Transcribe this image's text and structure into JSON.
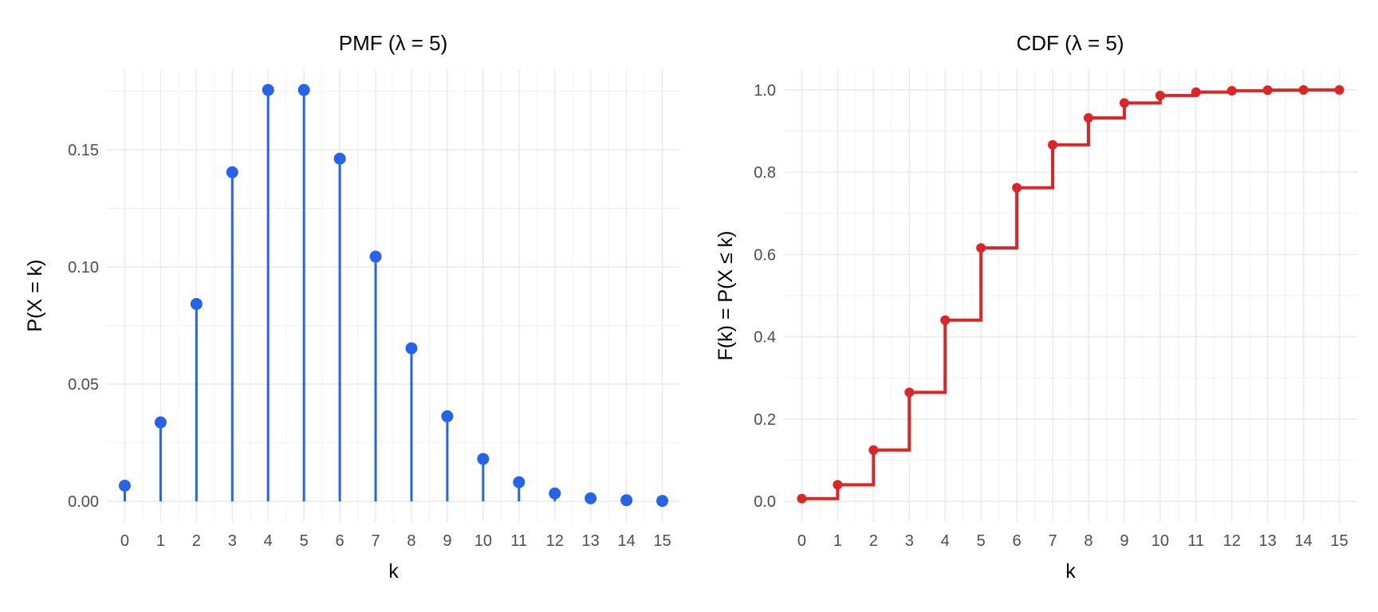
{
  "chart_data": [
    {
      "type": "line",
      "subtype": "lollipop",
      "title": "PMF  (λ = 5)",
      "xlabel": "k",
      "ylabel": "P(X = k)",
      "color": "#2563eb",
      "x": [
        0,
        1,
        2,
        3,
        4,
        5,
        6,
        7,
        8,
        9,
        10,
        11,
        12,
        13,
        14,
        15
      ],
      "xticks": [
        "0",
        "1",
        "2",
        "3",
        "4",
        "5",
        "6",
        "7",
        "8",
        "9",
        "10",
        "11",
        "12",
        "13",
        "14",
        "15"
      ],
      "values": [
        0.0067,
        0.0337,
        0.0842,
        0.1404,
        0.1755,
        0.1755,
        0.1462,
        0.1044,
        0.0653,
        0.0363,
        0.0181,
        0.0082,
        0.0034,
        0.0013,
        0.0005,
        0.0002
      ],
      "yticks": [
        "0.00",
        "0.05",
        "0.10",
        "0.15"
      ],
      "ytick_values": [
        0,
        0.05,
        0.1,
        0.15
      ],
      "xlim": [
        -0.5,
        15.5
      ],
      "ylim": [
        -0.00877,
        0.1843
      ],
      "grid": true
    },
    {
      "type": "line",
      "subtype": "step",
      "title": "CDF  (λ = 5)",
      "xlabel": "k",
      "ylabel": "F(k) = P(X ≤ k)",
      "color": "#dc2626",
      "x": [
        0,
        1,
        2,
        3,
        4,
        5,
        6,
        7,
        8,
        9,
        10,
        11,
        12,
        13,
        14,
        15
      ],
      "xticks": [
        "0",
        "1",
        "2",
        "3",
        "4",
        "5",
        "6",
        "7",
        "8",
        "9",
        "10",
        "11",
        "12",
        "13",
        "14",
        "15"
      ],
      "values": [
        0.0067,
        0.0404,
        0.1247,
        0.265,
        0.4405,
        0.616,
        0.7622,
        0.8666,
        0.9319,
        0.9682,
        0.9863,
        0.9945,
        0.998,
        0.9993,
        0.9998,
        0.9999
      ],
      "yticks": [
        "0.0",
        "0.2",
        "0.4",
        "0.6",
        "0.8",
        "1.0"
      ],
      "ytick_values": [
        0,
        0.2,
        0.4,
        0.6,
        0.8,
        1.0
      ],
      "xlim": [
        -0.5,
        15.5
      ],
      "ylim": [
        -0.05,
        1.05
      ],
      "grid": true
    }
  ]
}
